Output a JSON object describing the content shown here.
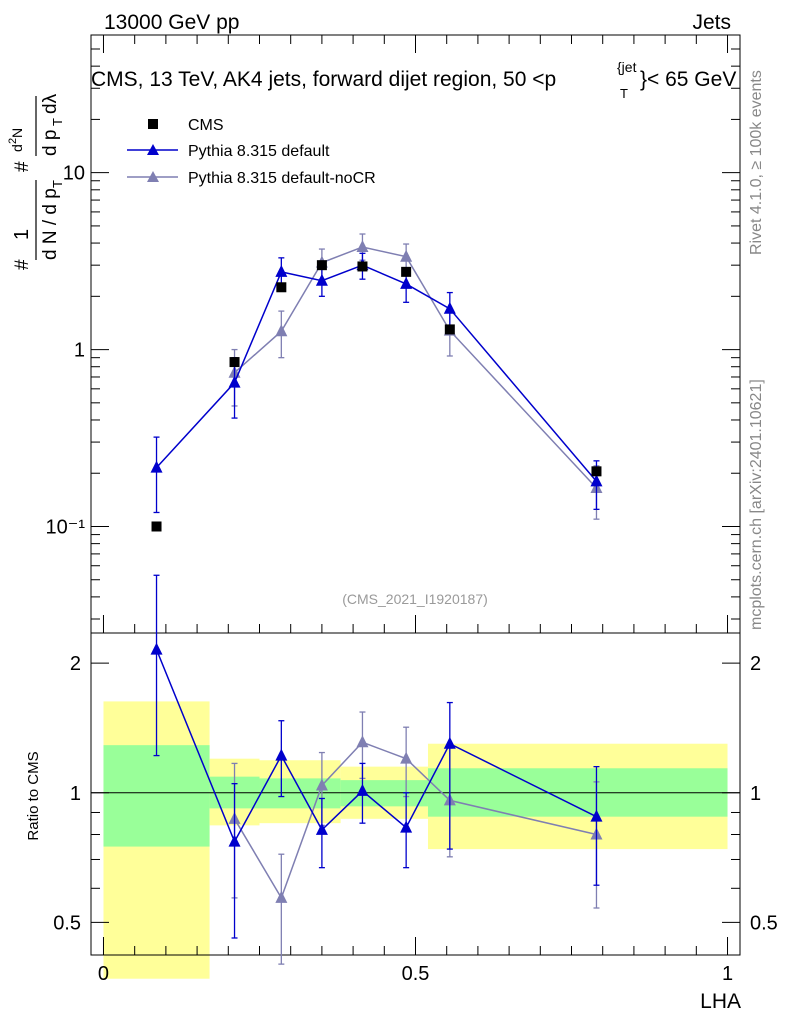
{
  "header": {
    "energy_label": "13000 GeV pp",
    "category_label": "Jets",
    "side_label_top": "Rivet 4.1.0, ≥ 100k events",
    "side_label_bottom": "mcplots.cern.ch [arXiv:2401.10621]"
  },
  "chart_data": [
    {
      "type": "scatter",
      "panel": "main",
      "title": "CMS, 13 TeV, AK4 jets, forward dijet region, 50 < p_T^{jet} < 65 GeV",
      "title_parts": {
        "main": "CMS, 13 TeV, AK4 jets, forward dijet region, 50 <p",
        "sub": "T",
        "sup": "{jet",
        "tail": "}< 65 GeV"
      },
      "watermark": "(CMS_2021_I1920187)",
      "ylabel": "1/(dN/dp_T) d²N/(dp_T dλ)",
      "yscale": "log",
      "ylim": [
        0.025,
        60
      ],
      "xlim": [
        -0.02,
        1.02
      ],
      "y_ticks": [
        {
          "value": 0.1,
          "label": "10⁻¹"
        },
        {
          "value": 1,
          "label": "1"
        },
        {
          "value": 10,
          "label": "10"
        }
      ],
      "legend": [
        {
          "name": "CMS",
          "marker": "square",
          "color": "#000000"
        },
        {
          "name": "Pythia 8.315 default",
          "marker": "triangle",
          "color": "#0000cc"
        },
        {
          "name": "Pythia 8.315 default-noCR",
          "marker": "triangle",
          "color": "#7f7fb2"
        }
      ],
      "series": [
        {
          "name": "CMS",
          "x": [
            0.085,
            0.21,
            0.285,
            0.35,
            0.415,
            0.485,
            0.555,
            0.79
          ],
          "y": [
            0.1,
            0.85,
            2.25,
            3.0,
            2.95,
            2.75,
            1.3,
            0.205
          ]
        },
        {
          "name": "Pythia 8.315 default",
          "x": [
            0.085,
            0.21,
            0.285,
            0.35,
            0.415,
            0.485,
            0.555,
            0.79
          ],
          "y": [
            0.215,
            0.65,
            2.75,
            2.45,
            3.0,
            2.35,
            1.7,
            0.18
          ],
          "err_low": [
            0.12,
            0.41,
            2.2,
            2.0,
            2.5,
            1.85,
            1.35,
            0.125
          ],
          "err_high": [
            0.32,
            0.9,
            3.3,
            2.9,
            3.5,
            2.85,
            2.1,
            0.235
          ]
        },
        {
          "name": "Pythia 8.315 default-noCR",
          "x": [
            0.085,
            0.21,
            0.285,
            0.35,
            0.415,
            0.485,
            0.555,
            0.79
          ],
          "y": [
            null,
            0.74,
            1.27,
            3.1,
            3.8,
            3.35,
            1.28,
            0.165
          ],
          "err_low": [
            null,
            0.48,
            0.9,
            2.5,
            3.2,
            2.75,
            0.92,
            0.11
          ],
          "err_high": [
            null,
            1.0,
            1.65,
            3.7,
            4.5,
            3.95,
            1.65,
            0.22
          ]
        }
      ]
    },
    {
      "type": "scatter",
      "panel": "ratio",
      "ylabel": "Ratio to CMS",
      "xlabel": "LHA",
      "yscale": "log",
      "ylim": [
        0.42,
        2.35
      ],
      "xlim": [
        -0.02,
        1.02
      ],
      "x_ticks": [
        {
          "value": 0,
          "label": "0"
        },
        {
          "value": 0.5,
          "label": "0.5"
        },
        {
          "value": 1,
          "label": "1"
        }
      ],
      "y_ticks": [
        {
          "value": 0.5,
          "label": "0.5"
        },
        {
          "value": 1,
          "label": "1"
        },
        {
          "value": 2,
          "label": "2"
        }
      ],
      "bands": [
        {
          "x0": 0.0,
          "x1": 0.17,
          "yellow": [
            0.37,
            1.63
          ],
          "green": [
            0.75,
            1.29
          ]
        },
        {
          "x0": 0.17,
          "x1": 0.25,
          "yellow": [
            0.84,
            1.2
          ],
          "green": [
            0.92,
            1.09
          ]
        },
        {
          "x0": 0.25,
          "x1": 0.38,
          "yellow": [
            0.85,
            1.19
          ],
          "green": [
            0.92,
            1.08
          ]
        },
        {
          "x0": 0.38,
          "x1": 0.52,
          "yellow": [
            0.87,
            1.15
          ],
          "green": [
            0.93,
            1.07
          ]
        },
        {
          "x0": 0.52,
          "x1": 1.0,
          "yellow": [
            0.74,
            1.3
          ],
          "green": [
            0.88,
            1.14
          ]
        }
      ],
      "series": [
        {
          "name": "Pythia 8.315 default",
          "x": [
            0.085,
            0.21,
            0.285,
            0.35,
            0.415,
            0.485,
            0.555,
            0.79
          ],
          "y": [
            2.15,
            0.77,
            1.22,
            0.82,
            1.01,
            0.83,
            1.3,
            0.88
          ],
          "err_low": [
            1.22,
            0.46,
            0.98,
            0.67,
            0.85,
            0.67,
            0.74,
            0.61
          ],
          "err_high": [
            3.2,
            1.05,
            1.47,
            0.97,
            1.17,
            1.0,
            1.62,
            1.15
          ]
        },
        {
          "name": "Pythia 8.315 default-noCR",
          "x": [
            0.085,
            0.21,
            0.285,
            0.35,
            0.415,
            0.485,
            0.555,
            0.79
          ],
          "y": [
            null,
            0.87,
            0.57,
            1.04,
            1.31,
            1.2,
            0.96,
            0.8
          ],
          "err_low": [
            null,
            0.57,
            0.4,
            0.84,
            1.08,
            0.98,
            0.71,
            0.54
          ],
          "err_high": [
            null,
            1.17,
            0.72,
            1.24,
            1.54,
            1.42,
            1.27,
            1.06
          ]
        }
      ]
    }
  ]
}
